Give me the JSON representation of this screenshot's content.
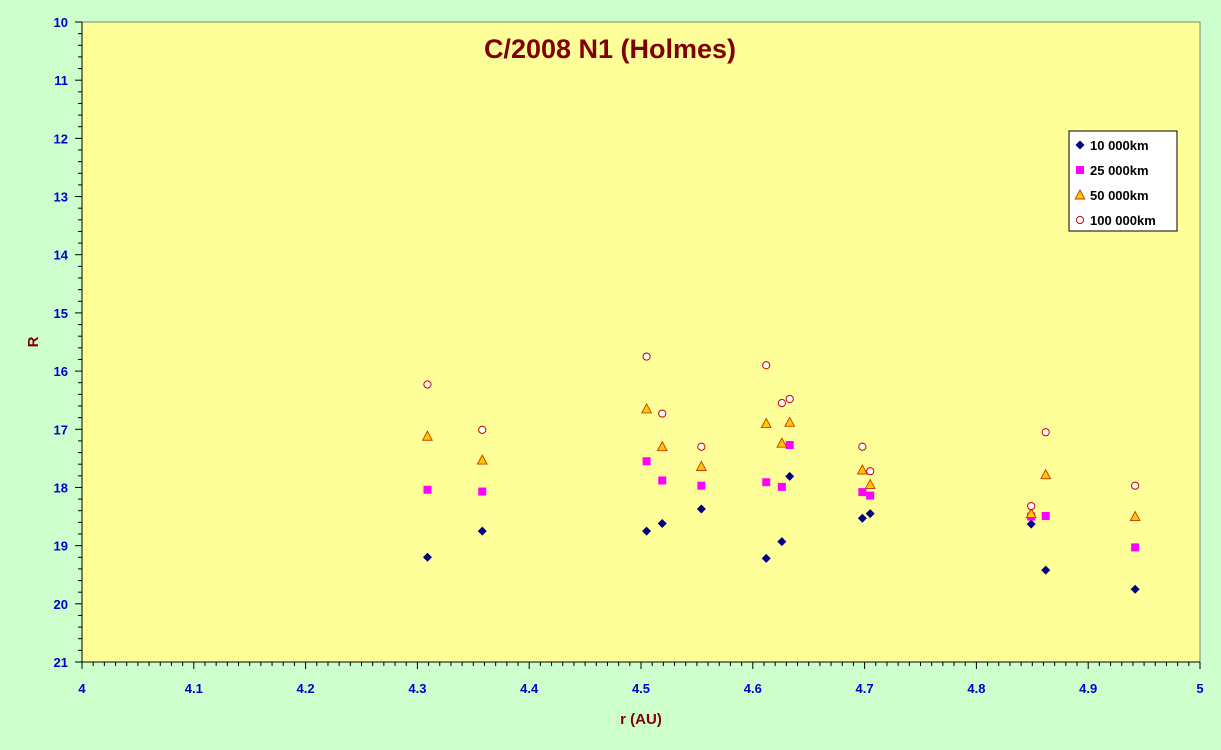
{
  "chart_data": {
    "type": "scatter",
    "title": "C/2008 N1 (Holmes)",
    "xlabel": "r (AU)",
    "ylabel": "R",
    "xlim": [
      4,
      5
    ],
    "ylim": [
      10,
      21
    ],
    "y_reversed": true,
    "x_ticks": [
      "4",
      "4.1",
      "4.2",
      "4.3",
      "4.4",
      "4.5",
      "4.6",
      "4.7",
      "4.8",
      "4.9",
      "5"
    ],
    "y_ticks": [
      "10",
      "11",
      "12",
      "13",
      "14",
      "15",
      "16",
      "17",
      "18",
      "19",
      "20",
      "21"
    ],
    "grid": false,
    "legend_position": "top-right",
    "x": [
      4.309,
      4.358,
      4.505,
      4.519,
      4.554,
      4.612,
      4.626,
      4.633,
      4.698,
      4.705,
      4.849,
      4.862,
      4.942
    ],
    "series": [
      {
        "name": "10 000km",
        "marker": "diamond",
        "color": "#000080",
        "values": [
          19.2,
          18.75,
          18.75,
          18.62,
          18.37,
          19.22,
          18.93,
          17.81,
          18.53,
          18.45,
          18.63,
          19.42,
          19.75
        ]
      },
      {
        "name": "25 000km",
        "marker": "square",
        "color": "#ff00ff",
        "values": [
          18.04,
          18.07,
          17.55,
          17.88,
          17.97,
          17.91,
          17.99,
          17.27,
          18.08,
          18.14,
          18.5,
          18.49,
          19.03
        ]
      },
      {
        "name": "50 000km",
        "marker": "triangle",
        "color": "#ffcc00",
        "stroke": "#cc3300",
        "values": [
          17.12,
          17.53,
          16.65,
          17.3,
          17.64,
          16.9,
          17.24,
          16.88,
          17.7,
          17.95,
          18.45,
          17.78,
          18.5
        ]
      },
      {
        "name": "100 000km",
        "marker": "circle-open",
        "color": "#cc0000",
        "values": [
          16.23,
          17.01,
          15.75,
          16.73,
          17.3,
          15.9,
          16.55,
          16.48,
          17.3,
          17.72,
          18.32,
          17.05,
          17.97
        ]
      }
    ]
  }
}
